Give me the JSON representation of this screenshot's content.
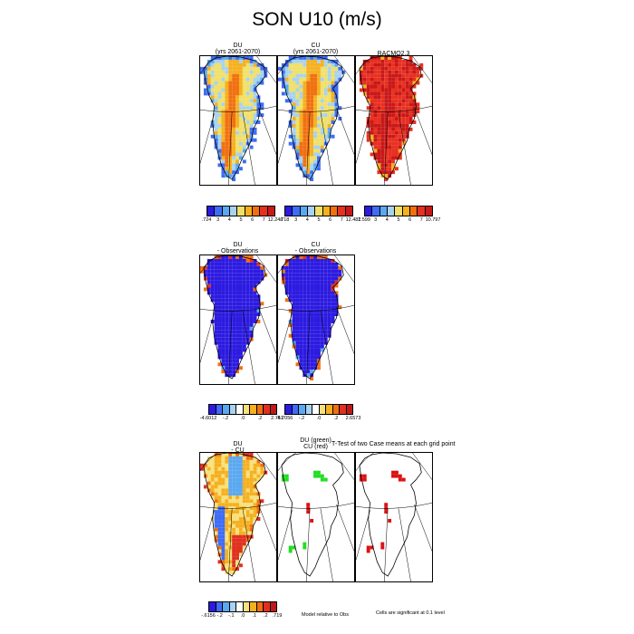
{
  "title": "SON U10 (m/s)",
  "colors": {
    "abs_scale": [
      "#2c1ae0",
      "#3f6cf5",
      "#5aa8f0",
      "#a8d2f0",
      "#f0e06a",
      "#f5b020",
      "#f07010",
      "#e83020",
      "#c81818"
    ],
    "diff_scale": [
      "#2c1ae0",
      "#3f6cf5",
      "#5aa8f0",
      "#a8d2f0",
      "#ffffff",
      "#f8e07a",
      "#f5b020",
      "#f07010",
      "#e03020",
      "#c01818"
    ],
    "ttest_du": "#22dd22",
    "ttest_cu": "#dd1111"
  },
  "panels": {
    "du_future": {
      "title_line1": "DU",
      "title_line2": "(yrs 2061-2070)"
    },
    "cu_future": {
      "title_line1": "CU",
      "title_line2": "(yrs 2061-2070)"
    },
    "racmo": {
      "title_line1": "RACMO2.3"
    },
    "du_obs": {
      "title_line1": "DU",
      "title_line2": "- Observations"
    },
    "cu_obs": {
      "title_line1": "CU",
      "title_line2": "- Observations"
    },
    "du_cu": {
      "title_line1": "DU",
      "title_line2": "- CU"
    },
    "ttest": {
      "title_line1": "DU (green)",
      "title_line2": "CU (red)",
      "side_title": "T-Test of two Case means at each grid point"
    }
  },
  "colorbars": {
    "du_future": {
      "labels": [
        ".724",
        "3",
        "4",
        "5",
        "6",
        "7",
        "12.246"
      ]
    },
    "cu_future": {
      "labels": [
        ".718",
        "3",
        "4",
        "5",
        "6",
        "7",
        "12.482"
      ]
    },
    "racmo": {
      "labels": [
        "1.599",
        "3",
        "4",
        "5",
        "6",
        "7",
        "10.797"
      ]
    },
    "du_obs": {
      "labels": [
        "-4.6012",
        "-.2",
        ".0",
        ".2",
        "2.751"
      ]
    },
    "cu_obs": {
      "labels": [
        "-4.7056",
        "-.2",
        ".0",
        ".2",
        "2.6573"
      ]
    },
    "du_cu": {
      "labels": [
        "-.6156",
        "-.2",
        "-.1",
        ".0",
        ".1",
        ".2",
        ".719"
      ]
    }
  },
  "notes": {
    "model_relative": "Model relative to Obs",
    "significance": "Cells are significant at 0.1 level"
  },
  "chart_data": [
    {
      "type": "heatmap",
      "title": "DU (yrs 2061-2070)",
      "units": "m/s",
      "range": [
        0.724,
        12.246
      ],
      "ticks": [
        3,
        4,
        5,
        6,
        7
      ]
    },
    {
      "type": "heatmap",
      "title": "CU (yrs 2061-2070)",
      "units": "m/s",
      "range": [
        0.718,
        12.482
      ],
      "ticks": [
        3,
        4,
        5,
        6,
        7
      ]
    },
    {
      "type": "heatmap",
      "title": "RACMO2.3",
      "units": "m/s",
      "range": [
        1.599,
        10.797
      ],
      "ticks": [
        3,
        4,
        5,
        6,
        7
      ]
    },
    {
      "type": "heatmap",
      "title": "DU - Observations",
      "units": "m/s",
      "range": [
        -4.6012,
        2.751
      ],
      "ticks": [
        -0.2,
        0.0,
        0.2
      ]
    },
    {
      "type": "heatmap",
      "title": "CU - Observations",
      "units": "m/s",
      "range": [
        -4.7056,
        2.6573
      ],
      "ticks": [
        -0.2,
        0.0,
        0.2
      ]
    },
    {
      "type": "heatmap",
      "title": "DU - CU",
      "units": "m/s",
      "range": [
        -0.6156,
        0.719
      ],
      "ticks": [
        -0.2,
        -0.1,
        0.0,
        0.1,
        0.2
      ]
    },
    {
      "type": "heatmap",
      "title": "DU (green) CU (red) T-Test of two Case means at each grid point",
      "note": "Cells are significant at 0.1 level"
    }
  ]
}
